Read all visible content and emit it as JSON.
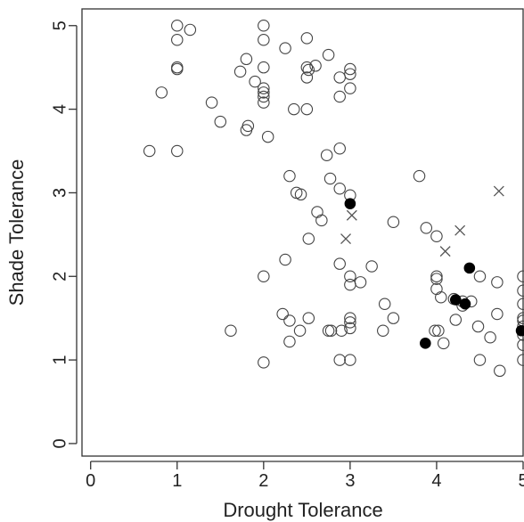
{
  "chart_data": {
    "type": "scatter",
    "xlabel": "Drought Tolerance",
    "ylabel": "Shade Tolerance",
    "xlim": [
      -0.1,
      5.0
    ],
    "ylim": [
      -0.15,
      5.2
    ],
    "xticks": [
      0,
      1,
      2,
      3,
      4,
      5
    ],
    "yticks": [
      0,
      1,
      2,
      3,
      4,
      5
    ],
    "grid": false,
    "series": [
      {
        "marker": "open-circle",
        "color": "#444444",
        "points": [
          [
            1.0,
            5.0
          ],
          [
            1.15,
            4.95
          ],
          [
            1.0,
            4.83
          ],
          [
            1.0,
            4.48
          ],
          [
            1.0,
            4.5
          ],
          [
            0.82,
            4.2
          ],
          [
            0.68,
            3.5
          ],
          [
            1.0,
            3.5
          ],
          [
            1.4,
            4.08
          ],
          [
            1.5,
            3.85
          ],
          [
            1.73,
            4.45
          ],
          [
            1.8,
            4.6
          ],
          [
            1.9,
            4.33
          ],
          [
            2.0,
            5.0
          ],
          [
            2.0,
            4.83
          ],
          [
            2.0,
            4.5
          ],
          [
            2.0,
            4.25
          ],
          [
            2.0,
            4.2
          ],
          [
            2.0,
            4.15
          ],
          [
            2.0,
            4.08
          ],
          [
            1.82,
            3.8
          ],
          [
            1.8,
            3.75
          ],
          [
            2.05,
            3.67
          ],
          [
            2.25,
            4.73
          ],
          [
            2.35,
            4.0
          ],
          [
            2.5,
            4.85
          ],
          [
            2.5,
            4.5
          ],
          [
            2.52,
            4.47
          ],
          [
            2.5,
            4.38
          ],
          [
            2.5,
            4.0
          ],
          [
            2.6,
            4.52
          ],
          [
            2.75,
            4.65
          ],
          [
            2.88,
            4.38
          ],
          [
            3.0,
            4.48
          ],
          [
            3.0,
            4.42
          ],
          [
            3.0,
            4.25
          ],
          [
            2.88,
            4.15
          ],
          [
            2.88,
            3.53
          ],
          [
            2.73,
            3.45
          ],
          [
            2.3,
            3.2
          ],
          [
            2.38,
            3.0
          ],
          [
            2.43,
            2.98
          ],
          [
            2.77,
            3.17
          ],
          [
            2.88,
            3.05
          ],
          [
            3.0,
            2.97
          ],
          [
            2.62,
            2.77
          ],
          [
            2.67,
            2.67
          ],
          [
            2.52,
            2.45
          ],
          [
            2.25,
            2.2
          ],
          [
            2.0,
            2.0
          ],
          [
            2.88,
            2.15
          ],
          [
            3.0,
            2.0
          ],
          [
            3.0,
            1.9
          ],
          [
            3.12,
            1.93
          ],
          [
            3.25,
            2.12
          ],
          [
            3.5,
            2.65
          ],
          [
            3.8,
            3.2
          ],
          [
            3.88,
            2.58
          ],
          [
            4.0,
            2.48
          ],
          [
            1.62,
            1.35
          ],
          [
            2.22,
            1.55
          ],
          [
            2.3,
            1.47
          ],
          [
            2.3,
            1.22
          ],
          [
            2.42,
            1.35
          ],
          [
            2.52,
            1.5
          ],
          [
            2.75,
            1.35
          ],
          [
            2.78,
            1.35
          ],
          [
            2.9,
            1.35
          ],
          [
            3.0,
            1.5
          ],
          [
            3.0,
            1.45
          ],
          [
            3.0,
            1.38
          ],
          [
            3.38,
            1.35
          ],
          [
            3.4,
            1.67
          ],
          [
            3.5,
            1.5
          ],
          [
            2.0,
            0.97
          ],
          [
            2.88,
            1.0
          ],
          [
            3.0,
            1.0
          ],
          [
            4.0,
            2.0
          ],
          [
            4.0,
            1.97
          ],
          [
            4.0,
            1.85
          ],
          [
            4.05,
            1.75
          ],
          [
            4.2,
            1.73
          ],
          [
            4.3,
            1.7
          ],
          [
            4.3,
            1.65
          ],
          [
            4.4,
            1.7
          ],
          [
            4.5,
            2.0
          ],
          [
            4.7,
            1.93
          ],
          [
            4.22,
            1.48
          ],
          [
            4.48,
            1.4
          ],
          [
            4.62,
            1.27
          ],
          [
            4.7,
            1.55
          ],
          [
            3.98,
            1.35
          ],
          [
            4.02,
            1.35
          ],
          [
            4.08,
            1.2
          ],
          [
            4.5,
            1.0
          ],
          [
            4.73,
            0.87
          ],
          [
            5.0,
            2.0
          ],
          [
            5.0,
            1.83
          ],
          [
            5.0,
            1.67
          ],
          [
            5.0,
            1.5
          ],
          [
            5.0,
            1.47
          ],
          [
            5.0,
            1.4
          ],
          [
            5.0,
            1.3
          ],
          [
            5.0,
            1.18
          ],
          [
            5.0,
            1.0
          ]
        ]
      },
      {
        "marker": "filled-circle",
        "color": "#000000",
        "points": [
          [
            3.0,
            2.87
          ],
          [
            4.38,
            2.1
          ],
          [
            4.22,
            1.72
          ],
          [
            4.33,
            1.67
          ],
          [
            3.87,
            1.2
          ],
          [
            4.98,
            1.35
          ]
        ]
      },
      {
        "marker": "cross",
        "color": "#555555",
        "points": [
          [
            4.72,
            3.02
          ],
          [
            3.02,
            2.73
          ],
          [
            2.95,
            2.45
          ],
          [
            4.27,
            2.55
          ],
          [
            4.1,
            2.3
          ]
        ]
      }
    ]
  }
}
